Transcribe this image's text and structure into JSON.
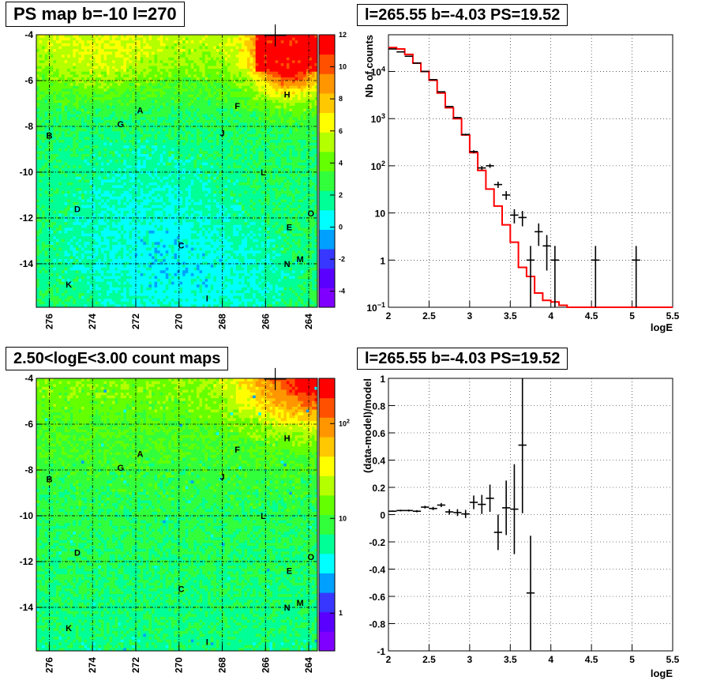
{
  "chart_data": [
    {
      "type": "heatmap",
      "title": "PS map b=-10 l=270",
      "x_ticks": [
        "276",
        "274",
        "272",
        "270",
        "268",
        "266",
        "264"
      ],
      "y_ticks": [
        "-4",
        "-6",
        "-8",
        "-10",
        "-12",
        "-14"
      ],
      "xlim": [
        276.6,
        263.6
      ],
      "ylim": [
        -15.9,
        -4
      ],
      "colorbar": {
        "scale": "linear",
        "range": [
          -5,
          12
        ],
        "ticks": [
          "12",
          "10",
          "8",
          "6",
          "4",
          "2",
          "0",
          "-2",
          "-4"
        ],
        "tick_values": [
          12,
          10,
          8,
          6,
          4,
          2,
          0,
          -2,
          -4
        ]
      },
      "sources": [
        {
          "label": "A",
          "l": 271.8,
          "b": -7.3
        },
        {
          "label": "B",
          "l": 276.0,
          "b": -8.4
        },
        {
          "label": "C",
          "l": 269.9,
          "b": -13.2
        },
        {
          "label": "D",
          "l": 274.7,
          "b": -11.6
        },
        {
          "label": "E",
          "l": 264.9,
          "b": -12.4
        },
        {
          "label": "F",
          "l": 267.3,
          "b": -7.1
        },
        {
          "label": "G",
          "l": 272.7,
          "b": -7.9
        },
        {
          "label": "H",
          "l": 265.0,
          "b": -6.6
        },
        {
          "label": "I",
          "l": 268.7,
          "b": -15.5
        },
        {
          "label": "J",
          "l": 268.0,
          "b": -8.3
        },
        {
          "label": "K",
          "l": 275.1,
          "b": -14.9
        },
        {
          "label": "L",
          "l": 266.1,
          "b": -10.0
        },
        {
          "label": "M",
          "l": 264.4,
          "b": -13.8
        },
        {
          "label": "N",
          "l": 265.0,
          "b": -14.0
        },
        {
          "label": "O",
          "l": 263.9,
          "b": -11.8
        }
      ],
      "marker": {
        "l": 265.55,
        "b": -4.03
      }
    },
    {
      "type": "line",
      "title": "l=265.55 b=-4.03 PS=19.52",
      "xlabel": "logE",
      "ylabel": "Nb of counts",
      "yscale": "log",
      "xlim": [
        2,
        5.5
      ],
      "ylim": [
        0.1,
        60000
      ],
      "x_ticks": [
        "2",
        "2.5",
        "3",
        "3.5",
        "4",
        "4.5",
        "5",
        "5.5"
      ],
      "y_ticks": [
        {
          "v": 0.1,
          "base": "10",
          "exp": "−1"
        },
        {
          "v": 1,
          "label": "1"
        },
        {
          "v": 10,
          "label": "10"
        },
        {
          "v": 100,
          "base": "10",
          "exp": "2"
        },
        {
          "v": 1000,
          "base": "10",
          "exp": "3"
        },
        {
          "v": 10000,
          "base": "10",
          "exp": "4"
        }
      ],
      "grid": true,
      "series": [
        {
          "kind": "model-step",
          "color": "#ff0000",
          "bin_width": 0.1,
          "x": [
            2.0,
            2.1,
            2.2,
            2.3,
            2.4,
            2.5,
            2.6,
            2.7,
            2.8,
            2.9,
            3.0,
            3.1,
            3.2,
            3.3,
            3.4,
            3.5,
            3.6,
            3.7,
            3.8,
            3.9,
            4.0,
            4.1,
            4.2,
            4.3,
            4.4,
            4.5,
            4.6,
            4.7,
            4.8,
            4.9,
            5.0,
            5.1,
            5.2,
            5.3,
            5.4
          ],
          "y": [
            32000,
            30000,
            23000,
            15000,
            10000,
            6500,
            3500,
            1700,
            1000,
            450,
            190,
            80,
            32,
            14,
            5.6,
            2.4,
            0.7,
            0.45,
            0.2,
            0.14,
            0.13,
            0.11,
            0.1,
            0.1,
            0.1,
            0.1,
            0.1,
            0.1,
            0.1,
            0.1,
            0.1,
            0.1,
            0.1,
            0.1,
            0.1
          ]
        },
        {
          "kind": "data-errorbars",
          "color": "#000000",
          "points": [
            {
              "x": 2.05,
              "y": 30000,
              "lo": 29500,
              "hi": 30500
            },
            {
              "x": 2.15,
              "y": 26000,
              "lo": 25600,
              "hi": 26400
            },
            {
              "x": 2.25,
              "y": 21000,
              "lo": 20600,
              "hi": 21400
            },
            {
              "x": 2.35,
              "y": 15000,
              "lo": 14700,
              "hi": 15300
            },
            {
              "x": 2.45,
              "y": 10000,
              "lo": 9800,
              "hi": 10200
            },
            {
              "x": 2.55,
              "y": 6700,
              "lo": 6550,
              "hi": 6850
            },
            {
              "x": 2.65,
              "y": 3700,
              "lo": 3600,
              "hi": 3800
            },
            {
              "x": 2.75,
              "y": 1800,
              "lo": 1750,
              "hi": 1850
            },
            {
              "x": 2.85,
              "y": 1050,
              "lo": 1020,
              "hi": 1080
            },
            {
              "x": 2.95,
              "y": 460,
              "lo": 440,
              "hi": 480
            },
            {
              "x": 3.05,
              "y": 200,
              "lo": 186,
              "hi": 214
            },
            {
              "x": 3.15,
              "y": 90,
              "lo": 81,
              "hi": 99
            },
            {
              "x": 3.25,
              "y": 100,
              "lo": 90,
              "hi": 110
            },
            {
              "x": 3.35,
              "y": 40,
              "lo": 34,
              "hi": 46
            },
            {
              "x": 3.45,
              "y": 24,
              "lo": 19,
              "hi": 29
            },
            {
              "x": 3.55,
              "y": 9,
              "lo": 6,
              "hi": 12
            },
            {
              "x": 3.65,
              "y": 8,
              "lo": 5.2,
              "hi": 11
            },
            {
              "x": 3.75,
              "y": 1,
              "lo": 0.1,
              "hi": 2
            },
            {
              "x": 3.85,
              "y": 4,
              "lo": 2,
              "hi": 6
            },
            {
              "x": 3.95,
              "y": 2,
              "lo": 0.6,
              "hi": 3.4
            },
            {
              "x": 4.05,
              "y": 1,
              "lo": 0.1,
              "hi": 2
            },
            {
              "x": 4.55,
              "y": 1,
              "lo": 0.1,
              "hi": 2
            },
            {
              "x": 5.05,
              "y": 1,
              "lo": 0.1,
              "hi": 2
            }
          ]
        }
      ]
    },
    {
      "type": "heatmap",
      "title": "2.50<logE<3.00 count maps",
      "x_ticks": [
        "276",
        "274",
        "272",
        "270",
        "268",
        "266",
        "264"
      ],
      "y_ticks": [
        "-4",
        "-6",
        "-8",
        "-10",
        "-12",
        "-14"
      ],
      "xlim": [
        276.6,
        263.6
      ],
      "ylim": [
        -15.9,
        -4
      ],
      "colorbar": {
        "scale": "log",
        "range": [
          0.4,
          300
        ],
        "ticks": [
          {
            "v": 100,
            "base": "10",
            "exp": "2"
          },
          {
            "v": 10,
            "label": "10"
          },
          {
            "v": 1,
            "label": "1"
          }
        ]
      },
      "sources_ref": 0,
      "marker": {
        "l": 265.55,
        "b": -4.03
      }
    },
    {
      "type": "scatter",
      "title": "l=265.55 b=-4.03 PS=19.52",
      "xlabel": "logE",
      "ylabel": "(data-model)/model",
      "xlim": [
        2,
        5.5
      ],
      "ylim": [
        -1,
        1
      ],
      "x_ticks": [
        "2",
        "2.5",
        "3",
        "3.5",
        "4",
        "4.5",
        "5",
        "5.5"
      ],
      "y_ticks": [
        "1",
        "0.8",
        "0.6",
        "0.4",
        "0.2",
        "0",
        "-0.2",
        "-0.4",
        "-0.6",
        "-0.8",
        "-1"
      ],
      "y_tick_values": [
        1,
        0.8,
        0.6,
        0.4,
        0.2,
        0,
        -0.2,
        -0.4,
        -0.6,
        -0.8,
        -1
      ],
      "grid": true,
      "points": [
        {
          "x": 2.05,
          "y": 0.025,
          "err": 0.005
        },
        {
          "x": 2.15,
          "y": 0.03,
          "err": 0.006
        },
        {
          "x": 2.25,
          "y": 0.03,
          "err": 0.007
        },
        {
          "x": 2.35,
          "y": 0.025,
          "err": 0.008
        },
        {
          "x": 2.45,
          "y": 0.055,
          "err": 0.01
        },
        {
          "x": 2.55,
          "y": 0.045,
          "err": 0.012
        },
        {
          "x": 2.65,
          "y": 0.07,
          "err": 0.015
        },
        {
          "x": 2.75,
          "y": 0.02,
          "err": 0.02
        },
        {
          "x": 2.85,
          "y": 0.015,
          "err": 0.025
        },
        {
          "x": 2.95,
          "y": 0.005,
          "err": 0.03
        },
        {
          "x": 3.05,
          "y": 0.09,
          "err": 0.05
        },
        {
          "x": 3.15,
          "y": 0.075,
          "err": 0.07
        },
        {
          "x": 3.25,
          "y": 0.12,
          "err": 0.1
        },
        {
          "x": 3.35,
          "y": -0.13,
          "err": 0.13
        },
        {
          "x": 3.45,
          "y": 0.05,
          "err": 0.2
        },
        {
          "x": 3.55,
          "y": 0.04,
          "err": 0.33
        },
        {
          "x": 3.65,
          "y": 0.51,
          "err": 0.5
        },
        {
          "x": 3.75,
          "y": -0.575,
          "err": 0.42
        }
      ]
    }
  ]
}
